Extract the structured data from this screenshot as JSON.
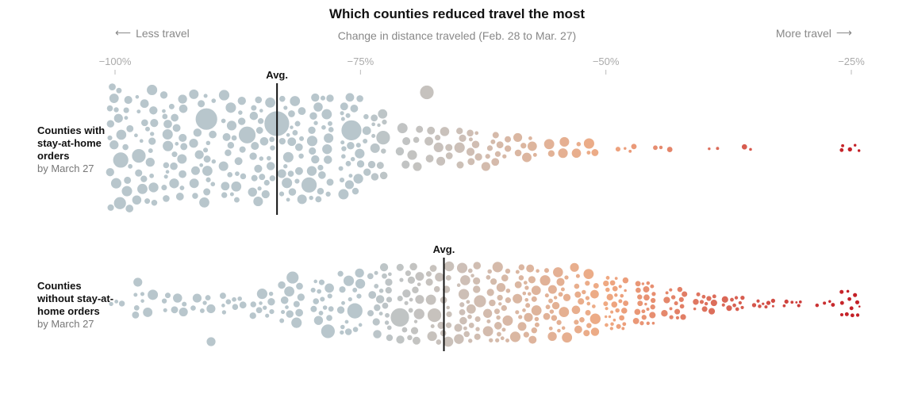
{
  "header": {
    "title": "Which counties reduced travel the most",
    "subtitle": "Change in distance traveled (Feb. 28 to Mar. 27)",
    "less_label": "Less travel",
    "more_label": "More travel",
    "less_arrow_icon": "arrow-left-icon",
    "more_arrow_icon": "arrow-right-icon"
  },
  "chart_data": {
    "type": "scatter",
    "subtype": "beeswarm",
    "title": "Which counties reduced travel the most",
    "xlabel": "Change in distance traveled (Feb. 28 to Mar. 27)",
    "xlim": [
      -100,
      -25
    ],
    "x_ticks": [
      {
        "value": -100,
        "label": "−100%"
      },
      {
        "value": -75,
        "label": "−75%"
      },
      {
        "value": -50,
        "label": "−50%"
      },
      {
        "value": -25,
        "label": "−25%"
      }
    ],
    "avg_label": "Avg.",
    "colors": {
      "low": "#b8c6cc",
      "mid": "#ccc0b8",
      "warm": "#efa982",
      "high": "#c42027"
    },
    "series": [
      {
        "name": "Counties with stay-at-home orders by March 27",
        "label_strong": "Counties with stay-at-home orders",
        "label_sub": "by March 27",
        "average": -83.5,
        "groups": [
          {
            "x": -99.5,
            "n": 24,
            "spread": 1.0
          },
          {
            "x": -97,
            "n": 24,
            "spread": 0.96
          },
          {
            "x": -94,
            "n": 26,
            "spread": 0.9
          },
          {
            "x": -91,
            "n": 26,
            "spread": 0.88
          },
          {
            "x": -88,
            "n": 30,
            "spread": 0.86
          },
          {
            "x": -85,
            "n": 32,
            "spread": 0.86
          },
          {
            "x": -82,
            "n": 32,
            "spread": 0.85
          },
          {
            "x": -79,
            "n": 30,
            "spread": 0.84
          },
          {
            "x": -76,
            "n": 30,
            "spread": 0.84
          },
          {
            "x": -73.5,
            "n": 22,
            "spread": 0.6
          },
          {
            "x": -70,
            "n": 14,
            "spread": 0.33
          },
          {
            "x": -67,
            "n": 14,
            "spread": 0.3
          },
          {
            "x": -64,
            "n": 14,
            "spread": 0.28
          },
          {
            "x": -61,
            "n": 12,
            "spread": 0.24
          },
          {
            "x": -58,
            "n": 10,
            "spread": 0.18
          },
          {
            "x": -55,
            "n": 8,
            "spread": 0.12
          },
          {
            "x": -52,
            "n": 6,
            "spread": 0.08
          },
          {
            "x": -48,
            "n": 5,
            "spread": 0.05
          },
          {
            "x": -44,
            "n": 3,
            "spread": 0.03
          },
          {
            "x": -39,
            "n": 2,
            "spread": 0.02
          },
          {
            "x": -35,
            "n": 2,
            "spread": 0.02
          },
          {
            "x": -25,
            "n": 5,
            "spread": 0.05
          }
        ],
        "large": [
          {
            "x": -99.5,
            "s": 8
          },
          {
            "x": -97.5,
            "s": 9
          },
          {
            "x": -99.5,
            "s": 10
          },
          {
            "x": -91,
            "s": 14
          },
          {
            "x": -86.5,
            "s": 11
          },
          {
            "x": -83.5,
            "s": 16
          },
          {
            "x": -80,
            "s": 10
          },
          {
            "x": -76,
            "s": 13
          },
          {
            "x": -72.5,
            "s": 9
          },
          {
            "x": -68,
            "s": 9
          },
          {
            "x": -65,
            "s": 7
          },
          {
            "x": -62,
            "s": 6
          }
        ]
      },
      {
        "name": "Counties without stay-at-home orders by March 27",
        "label_strong": "Counties without stay-at-home orders",
        "label_sub": "by March 27",
        "average": -66.5,
        "groups": [
          {
            "x": -99.5,
            "n": 3,
            "spread": 0.05
          },
          {
            "x": -97,
            "n": 8,
            "spread": 0.28
          },
          {
            "x": -94,
            "n": 8,
            "spread": 0.2
          },
          {
            "x": -91,
            "n": 8,
            "spread": 0.18
          },
          {
            "x": -88,
            "n": 9,
            "spread": 0.22
          },
          {
            "x": -85,
            "n": 11,
            "spread": 0.3
          },
          {
            "x": -82,
            "n": 16,
            "spread": 0.45
          },
          {
            "x": -79,
            "n": 20,
            "spread": 0.55
          },
          {
            "x": -76,
            "n": 26,
            "spread": 0.72
          },
          {
            "x": -73,
            "n": 30,
            "spread": 0.85
          },
          {
            "x": -70,
            "n": 32,
            "spread": 0.9
          },
          {
            "x": -67,
            "n": 34,
            "spread": 0.9
          },
          {
            "x": -64,
            "n": 36,
            "spread": 0.9
          },
          {
            "x": -61,
            "n": 40,
            "spread": 0.88
          },
          {
            "x": -58,
            "n": 42,
            "spread": 0.86
          },
          {
            "x": -55,
            "n": 42,
            "spread": 0.8
          },
          {
            "x": -52,
            "n": 40,
            "spread": 0.72
          },
          {
            "x": -49,
            "n": 36,
            "spread": 0.62
          },
          {
            "x": -46,
            "n": 30,
            "spread": 0.48
          },
          {
            "x": -43,
            "n": 24,
            "spread": 0.36
          },
          {
            "x": -40,
            "n": 18,
            "spread": 0.22
          },
          {
            "x": -37,
            "n": 12,
            "spread": 0.14
          },
          {
            "x": -34,
            "n": 8,
            "spread": 0.08
          },
          {
            "x": -31,
            "n": 6,
            "spread": 0.05
          },
          {
            "x": -27.5,
            "n": 4,
            "spread": 0.04
          },
          {
            "x": -25,
            "n": 12,
            "spread": 0.3
          }
        ],
        "large": [
          {
            "x": -98,
            "s": 6
          },
          {
            "x": -90,
            "s": 6
          },
          {
            "x": -85,
            "s": 7
          },
          {
            "x": -82,
            "s": 8
          },
          {
            "x": -78,
            "s": 9
          },
          {
            "x": -75.5,
            "s": 10
          },
          {
            "x": -71,
            "s": 12
          },
          {
            "x": -67.5,
            "s": 9
          },
          {
            "x": -63,
            "s": 8
          },
          {
            "x": -59,
            "s": 7
          },
          {
            "x": -56,
            "s": 7
          },
          {
            "x": -53,
            "s": 6
          }
        ]
      }
    ]
  }
}
